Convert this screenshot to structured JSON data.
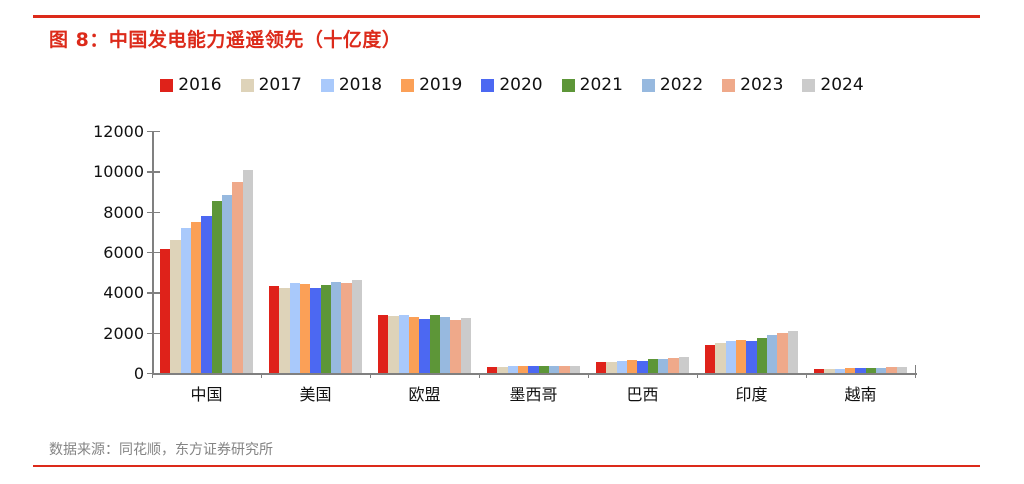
{
  "page": {
    "title": "图 8：中国发电能力遥遥领先（十亿度）",
    "footer": "数据来源：同花顺，东方证券研究所"
  },
  "colors": {
    "accent_red": "#dc2a1a",
    "axis_gray": "#808080",
    "footer_gray": "#848484",
    "text": "#111111"
  },
  "chart_data": {
    "type": "bar",
    "title": "图 8：中国发电能力遥遥领先（十亿度）",
    "unit": "十亿度",
    "categories": [
      "中国",
      "美国",
      "欧盟",
      "墨西哥",
      "巴西",
      "印度",
      "越南"
    ],
    "series": [
      {
        "name": "2016",
        "color": "#df221a",
        "values": [
          6133,
          4330,
          2860,
          315,
          560,
          1370,
          185
        ]
      },
      {
        "name": "2017",
        "color": "#ded3b9",
        "values": [
          6604,
          4235,
          2845,
          320,
          570,
          1500,
          200
        ]
      },
      {
        "name": "2018",
        "color": "#a9c9fb",
        "values": [
          7166,
          4465,
          2875,
          335,
          600,
          1590,
          220
        ]
      },
      {
        "name": "2019",
        "color": "#fba057",
        "values": [
          7503,
          4400,
          2795,
          340,
          640,
          1640,
          240
        ]
      },
      {
        "name": "2020",
        "color": "#4c68f2",
        "values": [
          7779,
          4220,
          2695,
          325,
          620,
          1580,
          250
        ]
      },
      {
        "name": "2021",
        "color": "#5d9638",
        "values": [
          8534,
          4365,
          2895,
          335,
          680,
          1715,
          255
        ]
      },
      {
        "name": "2022",
        "color": "#97b9df",
        "values": [
          8849,
          4530,
          2760,
          330,
          710,
          1860,
          270
        ]
      },
      {
        "name": "2023",
        "color": "#efa98a",
        "values": [
          9456,
          4465,
          2645,
          345,
          750,
          1960,
          285
        ]
      },
      {
        "name": "2024",
        "color": "#cbcbcb",
        "values": [
          10087,
          4630,
          2745,
          340,
          780,
          2080,
          320
        ]
      }
    ],
    "ylim": [
      0,
      12000
    ],
    "yticks": [
      0,
      2000,
      4000,
      6000,
      8000,
      10000,
      12000
    ],
    "legend_position": "top",
    "grid": false
  }
}
